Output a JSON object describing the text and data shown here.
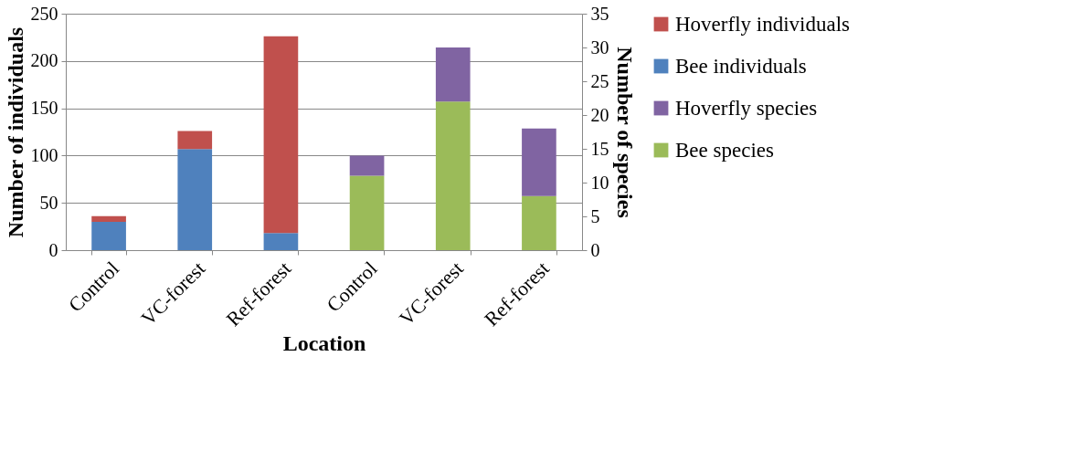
{
  "chart_data": {
    "type": "bar",
    "stacked": true,
    "xlabel": "Location",
    "ylabel": "Number of individuals",
    "y2label": "Number of species",
    "categories": [
      "Control",
      "VC-forest",
      "Ref-forest",
      "Control",
      "VC-forest",
      "Ref-forest"
    ],
    "series": [
      {
        "name": "Bee individuals",
        "color": "#4f81bd",
        "values": [
          30,
          107,
          18,
          null,
          null,
          null
        ]
      },
      {
        "name": "Hoverfly individuals",
        "color": "#c0504d",
        "values": [
          6,
          19,
          208,
          null,
          null,
          null
        ]
      },
      {
        "name": "Bee species",
        "color": "#9bbb59",
        "axis": "y2",
        "values": [
          null,
          null,
          null,
          11,
          22,
          8
        ]
      },
      {
        "name": "Hoverfly species",
        "color": "#8064a2",
        "axis": "y2",
        "values": [
          null,
          null,
          null,
          3,
          8,
          10
        ]
      }
    ],
    "ylim": [
      0,
      250
    ],
    "yticks": [
      0,
      50,
      100,
      150,
      200,
      250
    ],
    "y2lim": [
      0,
      35
    ],
    "y2ticks": [
      0,
      5,
      10,
      15,
      20,
      25,
      30,
      35
    ],
    "grid": "y",
    "legend": "right"
  }
}
